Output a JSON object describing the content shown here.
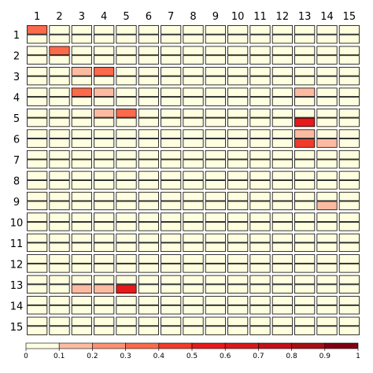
{
  "chart_data": {
    "type": "heatmap",
    "title": "",
    "xlabel": "",
    "ylabel": "",
    "x_ticks": [
      "1",
      "2",
      "3",
      "4",
      "5",
      "6",
      "7",
      "8",
      "9",
      "10",
      "11",
      "12",
      "13",
      "14",
      "15"
    ],
    "y_ticks": [
      "1",
      "2",
      "3",
      "4",
      "5",
      "6",
      "7",
      "8",
      "9",
      "10",
      "11",
      "12",
      "13",
      "14",
      "15"
    ],
    "value_range": [
      0,
      1
    ],
    "colorbar_ticks": [
      "0",
      "0.1",
      "0.2",
      "0.3",
      "0.4",
      "0.5",
      "0.6",
      "0.7",
      "0.8",
      "0.9",
      "1"
    ],
    "colorbar_colors": [
      "#FFFFE0",
      "#FCBBA1",
      "#FC9272",
      "#FB6A4A",
      "#EF3B2C",
      "#E61A1A",
      "#D7191C",
      "#C40F1A",
      "#A50F15",
      "#800010"
    ],
    "cells": [
      {
        "row": 1,
        "col": 1,
        "part": "top",
        "value": 0.3
      },
      {
        "row": 2,
        "col": 2,
        "part": "top",
        "value": 0.3
      },
      {
        "row": 3,
        "col": 3,
        "part": "top",
        "value": 0.15
      },
      {
        "row": 3,
        "col": 4,
        "part": "top",
        "value": 0.3
      },
      {
        "row": 4,
        "col": 3,
        "part": "top",
        "value": 0.3
      },
      {
        "row": 4,
        "col": 4,
        "part": "top",
        "value": 0.15
      },
      {
        "row": 4,
        "col": 13,
        "part": "top",
        "value": 0.15
      },
      {
        "row": 5,
        "col": 4,
        "part": "top",
        "value": 0.15
      },
      {
        "row": 5,
        "col": 5,
        "part": "top",
        "value": 0.35
      },
      {
        "row": 5,
        "col": 13,
        "part": "bottom",
        "value": 0.55
      },
      {
        "row": 6,
        "col": 13,
        "part": "bottom",
        "value": 0.45
      },
      {
        "row": 6,
        "col": 13,
        "part": "top",
        "value": 0.15
      },
      {
        "row": 6,
        "col": 14,
        "part": "bottom",
        "value": 0.15
      },
      {
        "row": 9,
        "col": 14,
        "part": "bottom",
        "value": 0.15
      },
      {
        "row": 13,
        "col": 3,
        "part": "bottom",
        "value": 0.15
      },
      {
        "row": 13,
        "col": 4,
        "part": "bottom",
        "value": 0.15
      },
      {
        "row": 13,
        "col": 5,
        "part": "bottom",
        "value": 0.55
      }
    ],
    "grid": false,
    "legend": "bottom"
  }
}
